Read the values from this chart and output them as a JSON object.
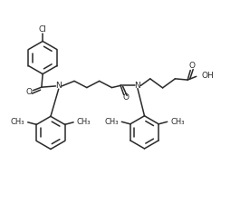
{
  "bg_color": "#ffffff",
  "line_color": "#2a2a2a",
  "line_width": 1.1,
  "font_size": 6.5,
  "figsize": [
    2.65,
    2.25
  ],
  "dpi": 100,
  "xlim": [
    0,
    10.5
  ],
  "ylim": [
    0,
    8.5
  ]
}
